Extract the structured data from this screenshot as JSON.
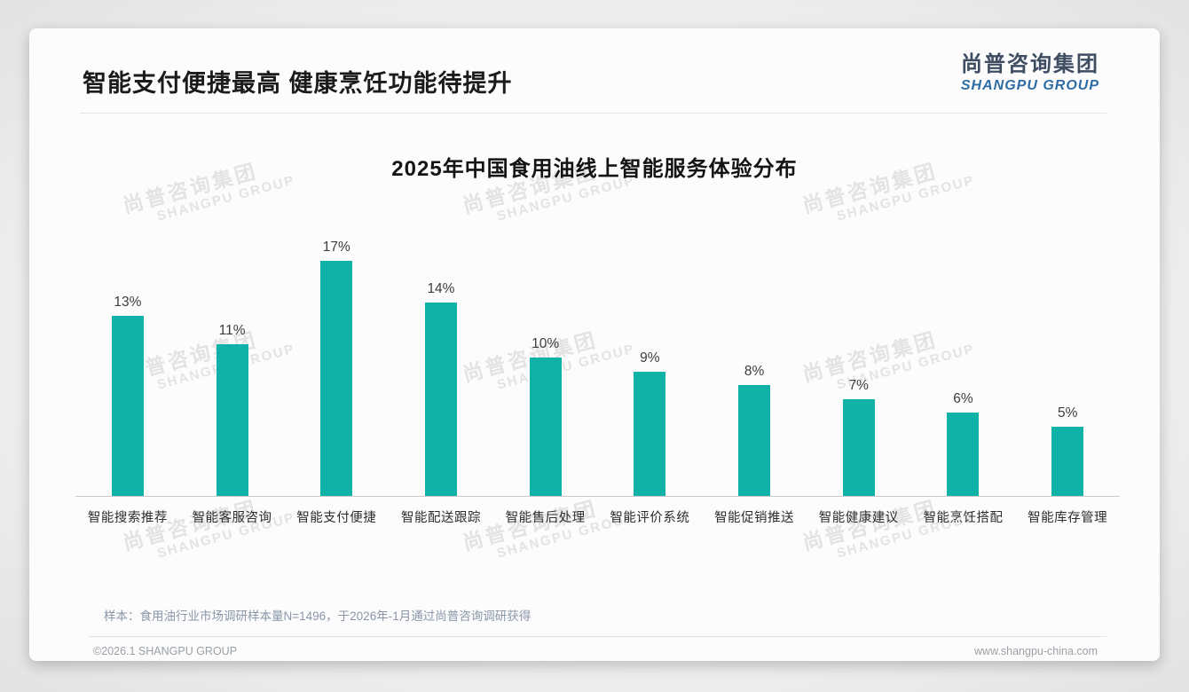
{
  "header": {
    "title": "智能支付便捷最高 健康烹饪功能待提升"
  },
  "logo": {
    "cn": "尚普咨询集团",
    "en": "SHANGPU GROUP"
  },
  "watermark": {
    "cn": "尚普咨询集团",
    "en": "SHANGPU GROUP"
  },
  "chart_data": {
    "type": "bar",
    "title": "2025年中国食用油线上智能服务体验分布",
    "categories": [
      "智能搜索推荐",
      "智能客服咨询",
      "智能支付便捷",
      "智能配送跟踪",
      "智能售后处理",
      "智能评价系统",
      "智能促销推送",
      "智能健康建议",
      "智能烹饪搭配",
      "智能库存管理"
    ],
    "values": [
      13,
      11,
      17,
      14,
      10,
      9,
      8,
      7,
      6,
      5
    ],
    "value_labels": [
      "13%",
      "11%",
      "17%",
      "14%",
      "10%",
      "9%",
      "8%",
      "7%",
      "6%",
      "5%"
    ],
    "unit": "%",
    "bar_color": "#10b2a8",
    "ylim": [
      0,
      17
    ],
    "grid": false,
    "legend": false,
    "xlabel": "",
    "ylabel": ""
  },
  "footnote": {
    "sample": "样本：食用油行业市场调研样本量N=1496，于2026年-1月通过尚普咨询调研获得"
  },
  "footer": {
    "copyright": "©2026.1 SHANGPU GROUP",
    "website": "www.shangpu-china.com"
  }
}
